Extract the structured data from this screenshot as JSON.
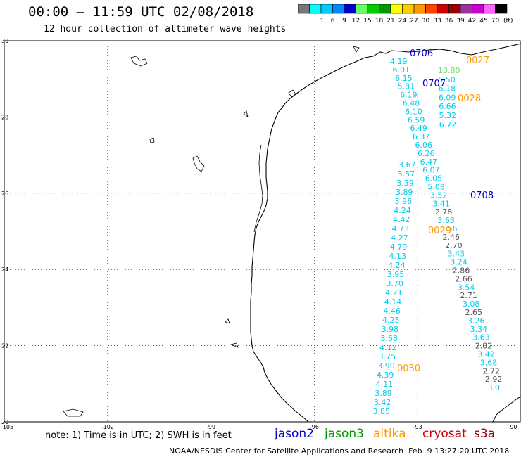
{
  "header": {
    "title": "00:00 – 11:59 UTC 02/08/2018",
    "subtitle": "12 hour collection of altimeter wave heights"
  },
  "legend": {
    "unit": "(ft)",
    "bins": [
      {
        "color": "#777777",
        "label": ""
      },
      {
        "color": "#00FFFF",
        "label": "3"
      },
      {
        "color": "#00CCFF",
        "label": "6"
      },
      {
        "color": "#0088FF",
        "label": "9"
      },
      {
        "color": "#0000CC",
        "label": "12"
      },
      {
        "color": "#66FF66",
        "label": "15"
      },
      {
        "color": "#00CC00",
        "label": "18"
      },
      {
        "color": "#009900",
        "label": "21"
      },
      {
        "color": "#FFFF00",
        "label": "24"
      },
      {
        "color": "#FFCC00",
        "label": "27"
      },
      {
        "color": "#FF9900",
        "label": "30"
      },
      {
        "color": "#FF4400",
        "label": "33"
      },
      {
        "color": "#CC0000",
        "label": "36"
      },
      {
        "color": "#990000",
        "label": "39"
      },
      {
        "color": "#993399",
        "label": "42"
      },
      {
        "color": "#CC00CC",
        "label": "45"
      },
      {
        "color": "#FF66FF",
        "label": "70"
      },
      {
        "color": "#000000",
        "label": ""
      }
    ]
  },
  "axes": {
    "lat_labels": [
      "30",
      "28",
      "26",
      "24",
      "22",
      "20"
    ],
    "lat_values": [
      30,
      28,
      26,
      24,
      22,
      20
    ],
    "lon_labels": [
      "-105",
      "-102",
      "-99",
      "-96",
      "-93",
      "-90"
    ],
    "lon_values": [
      -105,
      -102,
      -99,
      -96,
      -93,
      -90
    ]
  },
  "tracks": {
    "track_a": [
      "4.19",
      "6.01",
      "6.15",
      "5.81",
      "6.19",
      "6.48",
      "6.10",
      "6.59",
      "6.49",
      "6.37",
      "6.06",
      "6.26",
      "6.47",
      "6.07",
      "6.05",
      "5.08",
      "3.52",
      "3.41",
      "2.78",
      "3.63",
      "3.56",
      "2.46",
      "2.70",
      "3.43",
      "3.24",
      "2.86",
      "2.66",
      "3.54",
      "2.71",
      "3.08",
      "2.65",
      "3.26",
      "3.34",
      "3.63",
      "2.82",
      "3.42",
      "3.68",
      "2.72",
      "2.92",
      "3.0"
    ],
    "track_b": [
      "3.67",
      "3.57",
      "3.39",
      "3.89",
      "3.96",
      "4.24",
      "4.42",
      "4.73",
      "4.27",
      "4.79",
      "4.13",
      "4.24",
      "3.95",
      "3.70",
      "4.21",
      "4.14",
      "4.46",
      "4.25",
      "3.98",
      "3.68",
      "4.12",
      "3.75",
      "3.90",
      "4.39",
      "4.11",
      "3.89",
      "3.42",
      "3.85"
    ],
    "upper_right": [
      "13.80",
      "5.50",
      "6.18",
      "6.09",
      "6.66",
      "5.32",
      "6.72"
    ],
    "time_tags": [
      {
        "text": "0706",
        "color": "#0000CC"
      },
      {
        "text": "0027",
        "color": "#FF9900"
      },
      {
        "text": "0707",
        "color": "#0000CC"
      },
      {
        "text": "0028",
        "color": "#FF9900"
      },
      {
        "text": "0708",
        "color": "#0000CC"
      },
      {
        "text": "0029",
        "color": "#FF9900"
      },
      {
        "text": "0030",
        "color": "#FF9900"
      }
    ]
  },
  "footer": {
    "note": "note: 1) Time is in UTC; 2) SWH is in feet",
    "satellites": [
      {
        "name": "jason2",
        "color": "#0000CC"
      },
      {
        "name": "jason3",
        "color": "#009900"
      },
      {
        "name": "altika",
        "color": "#FF9900"
      },
      {
        "name": "cryosat",
        "color": "#CC0000"
      },
      {
        "name": "s3a",
        "color": "#990000"
      }
    ],
    "credit": "NOAA/NESDIS Center for Satellite Applications and Research  Feb  9 13:27:20 UTC 2018"
  }
}
